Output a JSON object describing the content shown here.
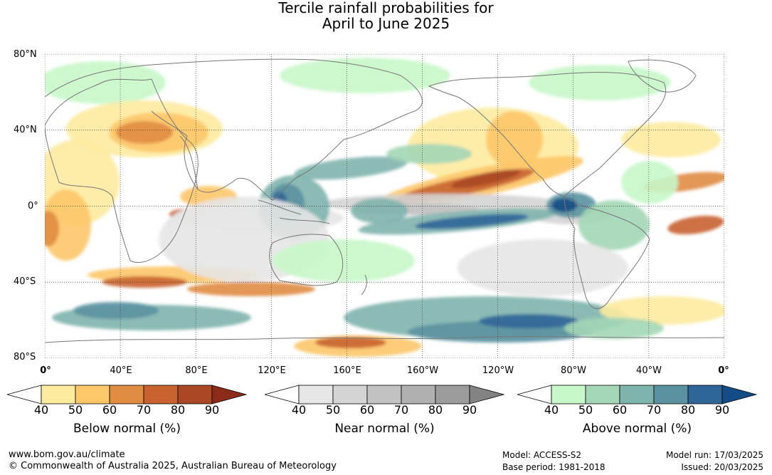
{
  "title_line1": "Tercile rainfall probabilities for",
  "title_line2": "April to June 2025",
  "lat_labels": [
    "80°N",
    "40°N",
    "0°",
    "40°S",
    "80°S"
  ],
  "lon_labels": [
    "0°",
    "40°E",
    "80°E",
    "120°E",
    "160°E",
    "160°W",
    "120°W",
    "80°W",
    "40°W",
    "0°"
  ],
  "colorbars": [
    {
      "label": "Below normal (%)",
      "ticks": [
        "40",
        "50",
        "60",
        "70",
        "80",
        "90"
      ],
      "colors": [
        "#ffffff",
        "#fdeba0",
        "#fdc76a",
        "#e08c42",
        "#c86331",
        "#aa4724",
        "#8c2b1a"
      ]
    },
    {
      "label": "Near normal (%)",
      "ticks": [
        "40",
        "50",
        "60",
        "70",
        "80",
        "90"
      ],
      "colors": [
        "#ffffff",
        "#e6e6e6",
        "#d4d4d4",
        "#c2c2c2",
        "#b0b0b0",
        "#9c9c9c",
        "#838383"
      ]
    },
    {
      "label": "Above normal (%)",
      "ticks": [
        "40",
        "50",
        "60",
        "70",
        "80",
        "90"
      ],
      "colors": [
        "#ffffff",
        "#c8f7c9",
        "#a3d6b6",
        "#7fb4ad",
        "#5a92a1",
        "#306598",
        "#144d86"
      ]
    }
  ],
  "footer": {
    "url": "www.bom.gov.au/climate",
    "copyright": "© Commonwealth of Australia 2025, Australian Bureau of Meteorology",
    "model": "Model: ACCESS-S2",
    "base_period": "Base period: 1981-2018",
    "model_run": "Model run: 17/03/2025",
    "issued": "Issued: 20/03/2025"
  }
}
